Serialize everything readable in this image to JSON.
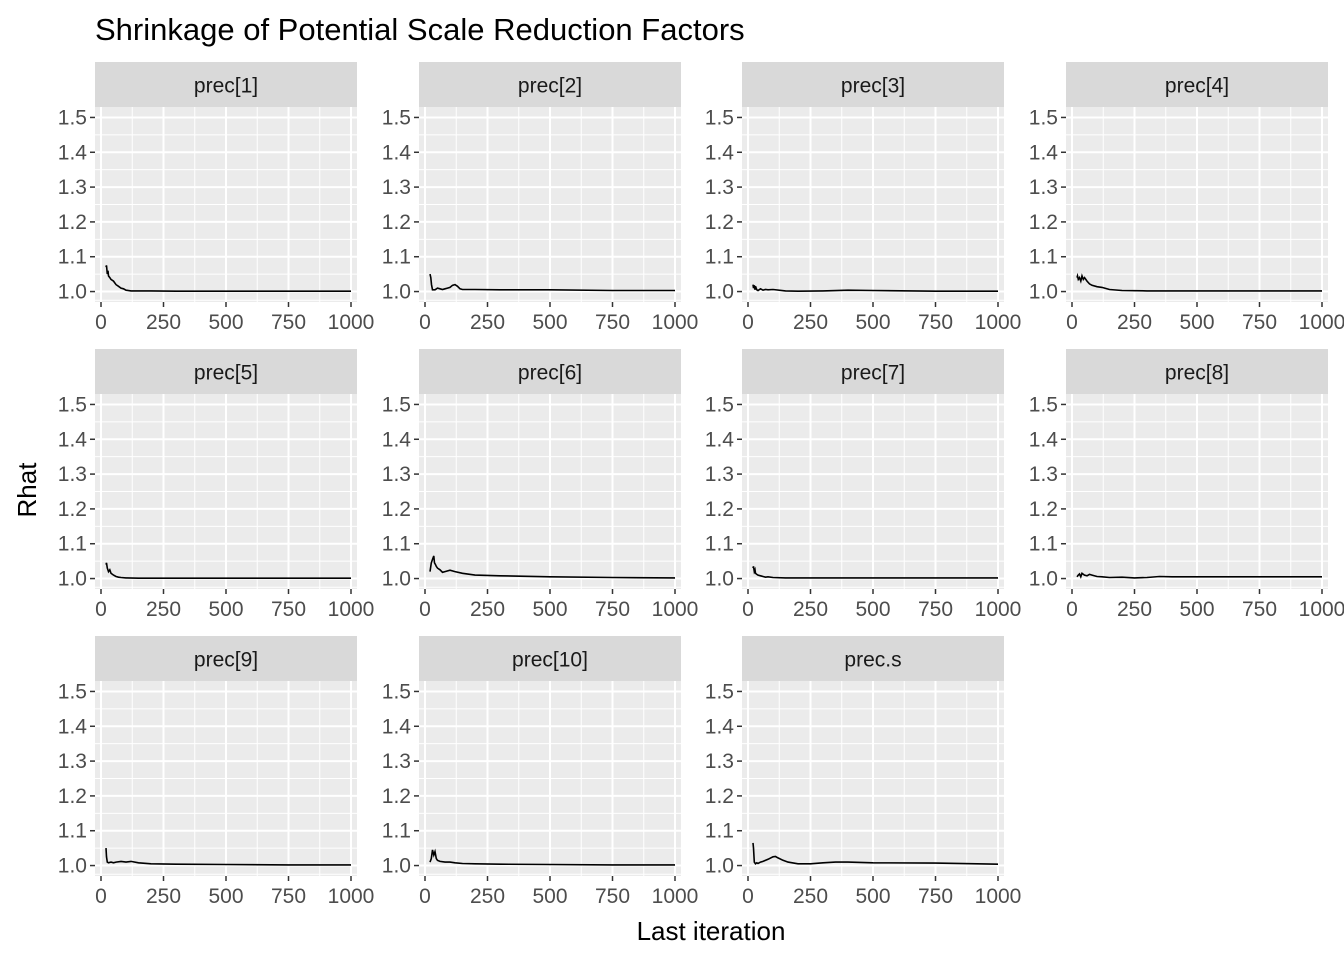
{
  "title": "Shrinkage of Potential Scale Reduction Factors",
  "xlabel": "Last iteration",
  "ylabel": "Rhat",
  "colors": {
    "panel_background": "#ebebeb",
    "grid": "#ffffff",
    "strip_background": "#d9d9d9",
    "line": "#000000",
    "tick_label": "#4d4d4d"
  },
  "chart_data": {
    "type": "line",
    "layout": "facet_wrap 3 rows x 4 columns",
    "xlim": [
      0,
      1000
    ],
    "ylim": [
      0.97,
      1.53
    ],
    "x_ticks": [
      0,
      250,
      500,
      750,
      1000
    ],
    "x_tick_labels": [
      "0",
      "250",
      "500",
      "750",
      "1000"
    ],
    "y_ticks": [
      1.0,
      1.1,
      1.2,
      1.3,
      1.4,
      1.5
    ],
    "y_tick_labels": [
      "1.0",
      "1.1",
      "1.2",
      "1.3",
      "1.4",
      "1.5"
    ],
    "grid": true,
    "legend": "none",
    "panels": [
      {
        "label": "prec[1]",
        "x": [
          20,
          22,
          25,
          28,
          30,
          35,
          40,
          50,
          60,
          70,
          80,
          90,
          100,
          120,
          150,
          200,
          300,
          500,
          750,
          1000
        ],
        "y": [
          1.07,
          1.075,
          1.05,
          1.06,
          1.045,
          1.04,
          1.035,
          1.03,
          1.02,
          1.015,
          1.01,
          1.008,
          1.004,
          1.002,
          1.002,
          1.002,
          1.001,
          1.001,
          1.001,
          1.001
        ]
      },
      {
        "label": "prec[2]",
        "x": [
          20,
          23,
          26,
          30,
          40,
          50,
          60,
          70,
          80,
          90,
          100,
          110,
          120,
          130,
          140,
          150,
          200,
          300,
          500,
          750,
          1000
        ],
        "y": [
          1.05,
          1.04,
          1.02,
          1.005,
          1.005,
          1.01,
          1.008,
          1.006,
          1.008,
          1.01,
          1.012,
          1.018,
          1.02,
          1.015,
          1.008,
          1.006,
          1.006,
          1.005,
          1.005,
          1.003,
          1.003
        ]
      },
      {
        "label": "prec[3]",
        "x": [
          20,
          22,
          25,
          28,
          30,
          35,
          40,
          50,
          60,
          70,
          80,
          100,
          150,
          200,
          300,
          400,
          500,
          750,
          1000
        ],
        "y": [
          1.02,
          1.01,
          1.018,
          1.005,
          1.015,
          1.005,
          1.003,
          1.008,
          1.004,
          1.006,
          1.005,
          1.006,
          1.002,
          1.001,
          1.002,
          1.004,
          1.003,
          1.001,
          1.001
        ]
      },
      {
        "label": "prec[4]",
        "x": [
          20,
          22,
          25,
          30,
          35,
          40,
          45,
          50,
          55,
          60,
          70,
          80,
          100,
          120,
          150,
          200,
          300,
          500,
          750,
          1000
        ],
        "y": [
          1.04,
          1.045,
          1.035,
          1.04,
          1.03,
          1.045,
          1.035,
          1.04,
          1.035,
          1.03,
          1.022,
          1.018,
          1.014,
          1.012,
          1.006,
          1.003,
          1.002,
          1.002,
          1.002,
          1.002
        ]
      },
      {
        "label": "prec[5]",
        "x": [
          20,
          22,
          25,
          30,
          35,
          40,
          50,
          60,
          70,
          80,
          100,
          150,
          200,
          300,
          500,
          750,
          1000
        ],
        "y": [
          1.04,
          1.045,
          1.03,
          1.02,
          1.025,
          1.015,
          1.01,
          1.006,
          1.004,
          1.003,
          1.002,
          1.001,
          1.001,
          1.001,
          1.001,
          1.001,
          1.001
        ]
      },
      {
        "label": "prec[6]",
        "x": [
          20,
          25,
          30,
          35,
          38,
          42,
          45,
          50,
          60,
          70,
          80,
          100,
          120,
          150,
          200,
          300,
          500,
          750,
          1000
        ],
        "y": [
          1.02,
          1.045,
          1.055,
          1.065,
          1.045,
          1.04,
          1.035,
          1.03,
          1.025,
          1.018,
          1.02,
          1.024,
          1.02,
          1.015,
          1.01,
          1.008,
          1.005,
          1.003,
          1.002
        ]
      },
      {
        "label": "prec[7]",
        "x": [
          20,
          22,
          25,
          28,
          30,
          35,
          40,
          50,
          60,
          70,
          80,
          100,
          150,
          200,
          300,
          500,
          750,
          1000
        ],
        "y": [
          1.03,
          1.035,
          1.02,
          1.025,
          1.015,
          1.012,
          1.01,
          1.008,
          1.006,
          1.004,
          1.005,
          1.003,
          1.002,
          1.002,
          1.002,
          1.002,
          1.002,
          1.002
        ]
      },
      {
        "label": "prec[8]",
        "x": [
          20,
          25,
          30,
          35,
          40,
          50,
          60,
          70,
          80,
          100,
          120,
          150,
          200,
          250,
          300,
          350,
          400,
          500,
          750,
          1000
        ],
        "y": [
          1.005,
          1.01,
          1.013,
          1.005,
          1.015,
          1.01,
          1.008,
          1.012,
          1.01,
          1.006,
          1.005,
          1.003,
          1.004,
          1.002,
          1.003,
          1.006,
          1.005,
          1.005,
          1.005,
          1.005
        ]
      },
      {
        "label": "prec[9]",
        "x": [
          20,
          22,
          25,
          30,
          40,
          50,
          60,
          80,
          100,
          120,
          150,
          200,
          300,
          500,
          750,
          1000
        ],
        "y": [
          1.05,
          1.025,
          1.01,
          1.008,
          1.01,
          1.008,
          1.01,
          1.012,
          1.01,
          1.012,
          1.008,
          1.005,
          1.004,
          1.003,
          1.002,
          1.002
        ]
      },
      {
        "label": "prec[10]",
        "x": [
          20,
          25,
          30,
          35,
          40,
          45,
          50,
          60,
          80,
          100,
          120,
          150,
          200,
          300,
          500,
          750,
          1000
        ],
        "y": [
          1.01,
          1.02,
          1.045,
          1.03,
          1.04,
          1.02,
          1.015,
          1.012,
          1.01,
          1.01,
          1.008,
          1.006,
          1.005,
          1.004,
          1.003,
          1.002,
          1.002
        ]
      },
      {
        "label": "prec.s",
        "x": [
          20,
          22,
          25,
          30,
          35,
          40,
          50,
          60,
          80,
          100,
          110,
          120,
          140,
          160,
          200,
          250,
          300,
          350,
          400,
          500,
          750,
          1000
        ],
        "y": [
          1.065,
          1.05,
          1.01,
          1.005,
          1.008,
          1.006,
          1.01,
          1.012,
          1.018,
          1.025,
          1.026,
          1.022,
          1.015,
          1.01,
          1.005,
          1.005,
          1.008,
          1.01,
          1.01,
          1.008,
          1.007,
          1.004
        ]
      }
    ]
  }
}
